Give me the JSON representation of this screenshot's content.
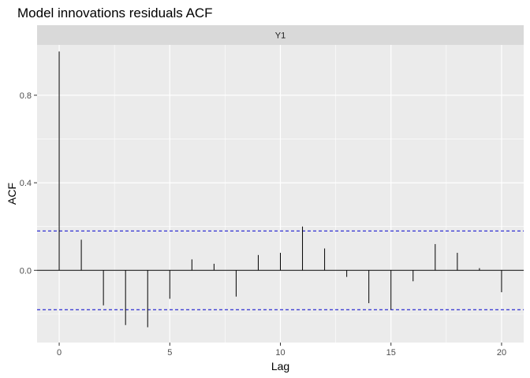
{
  "chart_data": {
    "type": "bar",
    "title": "Model innovations residuals ACF",
    "facet_label": "Y1",
    "xlabel": "Lag",
    "ylabel": "ACF",
    "xlim": [
      -1,
      21
    ],
    "ylim": [
      -0.33,
      1.03
    ],
    "x_ticks": [
      0,
      5,
      10,
      15,
      20
    ],
    "y_ticks": [
      0.0,
      0.4,
      0.8
    ],
    "y_tick_labels": [
      "0.0",
      "0.4",
      "0.8"
    ],
    "lags": [
      0,
      1,
      2,
      3,
      4,
      5,
      6,
      7,
      8,
      9,
      10,
      11,
      12,
      13,
      14,
      15,
      16,
      17,
      18,
      19,
      20
    ],
    "values": [
      1.0,
      0.14,
      -0.16,
      -0.25,
      -0.26,
      -0.13,
      0.05,
      0.03,
      -0.12,
      0.07,
      0.08,
      0.2,
      0.1,
      -0.03,
      -0.15,
      -0.18,
      -0.05,
      0.12,
      0.08,
      0.01,
      -0.1
    ],
    "confidence_bounds": [
      0.18,
      -0.18
    ],
    "grid": true,
    "colors": {
      "panel_background": "#ebebeb",
      "strip_background": "#d9d9d9",
      "grid_line": "#ffffff",
      "spike": "#000000",
      "confidence_line": "#0000cc"
    }
  }
}
